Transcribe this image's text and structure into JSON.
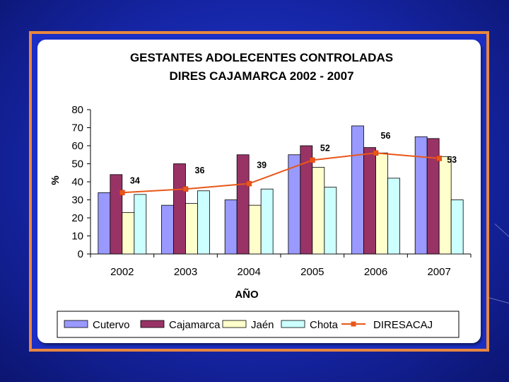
{
  "chart_data": {
    "type": "bar",
    "title_line1": "GESTANTES ADOLECENTES CONTROLADAS",
    "title_line2": "DIRES CAJAMARCA  2002 - 2007",
    "xlabel": "AÑO",
    "ylabel": "%",
    "ylim": [
      0,
      80
    ],
    "yticks": [
      0,
      10,
      20,
      30,
      40,
      50,
      60,
      70,
      80
    ],
    "categories": [
      "2002",
      "2003",
      "2004",
      "2005",
      "2006",
      "2007"
    ],
    "series": [
      {
        "name": "Cutervo",
        "color": "#9999ff",
        "values": [
          34,
          27,
          30,
          55,
          71,
          65
        ]
      },
      {
        "name": "Cajamarca",
        "color": "#993366",
        "values": [
          44,
          50,
          55,
          60,
          59,
          64
        ]
      },
      {
        "name": "Jaén",
        "color": "#ffffcc",
        "values": [
          23,
          28,
          27,
          48,
          56,
          54
        ]
      },
      {
        "name": "Chota",
        "color": "#ccffff",
        "values": [
          33,
          35,
          36,
          37,
          42,
          30
        ]
      }
    ],
    "line_series": {
      "name": "DIRESACAJ",
      "color": "#e8571a",
      "values": [
        34,
        36,
        39,
        52,
        56,
        53
      ]
    },
    "data_labels": [
      "34",
      "36",
      "39",
      "52",
      "56",
      "53"
    ],
    "legend_position": "bottom",
    "grid": false
  }
}
